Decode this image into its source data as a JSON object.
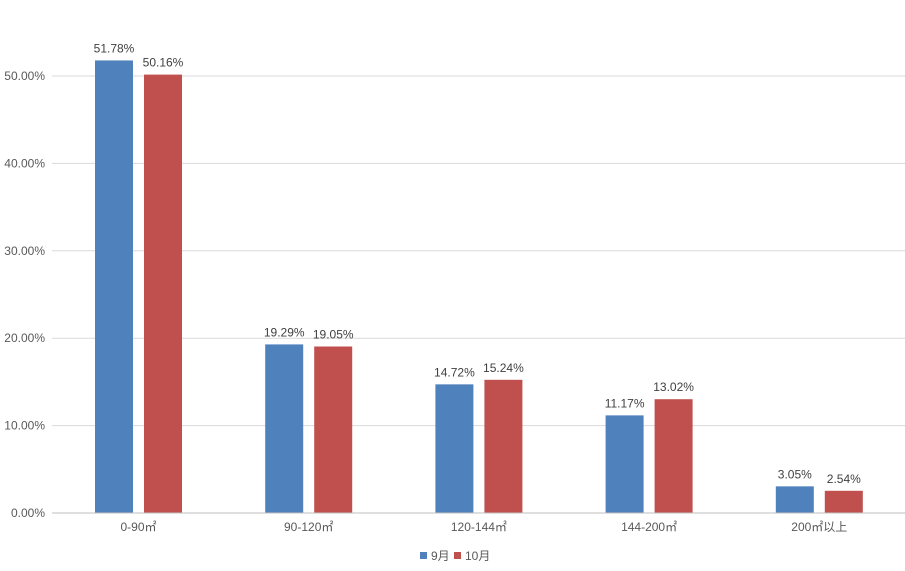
{
  "chart_data": {
    "type": "bar",
    "categories": [
      "0-90㎡",
      "90-120㎡",
      "120-144㎡",
      "144-200㎡",
      "200㎡以上"
    ],
    "series": [
      {
        "name": "9月",
        "color": "#4F81BD",
        "values": [
          51.78,
          19.29,
          14.72,
          11.17,
          3.05
        ],
        "labels": [
          "51.78%",
          "19.29%",
          "14.72%",
          "11.17%",
          "3.05%"
        ]
      },
      {
        "name": "10月",
        "color": "#C0504D",
        "values": [
          50.16,
          19.05,
          15.24,
          13.02,
          2.54
        ],
        "labels": [
          "50.16%",
          "19.05%",
          "15.24%",
          "13.02%",
          "2.54%"
        ]
      }
    ],
    "y_ticks": [
      "0.00%",
      "10.00%",
      "20.00%",
      "30.00%",
      "40.00%",
      "50.00%"
    ],
    "ylim": [
      0,
      50
    ],
    "grid": true,
    "legend_position": "bottom"
  }
}
